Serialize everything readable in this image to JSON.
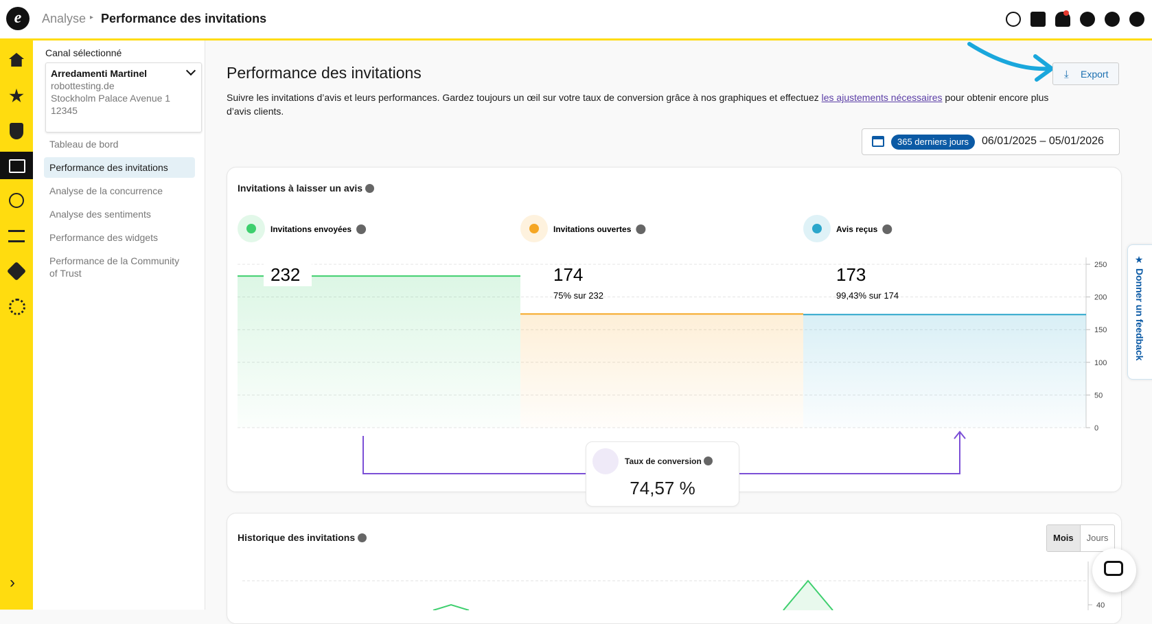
{
  "header": {
    "breadcrumb_parent": "Analyse",
    "breadcrumb_current": "Performance des invitations"
  },
  "sidebar": {
    "channel_label": "Canal sélectionné",
    "channel": {
      "name": "Arredamenti Martinel",
      "domain": "robottesting.de",
      "address": "Stockholm Palace Avenue 1",
      "zip": "12345"
    },
    "nav": [
      "Tableau de bord",
      "Performance des invitations",
      "Analyse de la concurrence",
      "Analyse des sentiments",
      "Performance des widgets",
      "Performance de la Community of Trust"
    ],
    "active": 1
  },
  "page": {
    "title": "Performance des invitations",
    "description_before": "Suivre les invitations d’avis et leurs performances. Gardez toujours un œil sur votre taux de conversion grâce à nos graphiques et effectuez ",
    "description_link": "les ajustements nécessaires",
    "description_after": " pour obtenir encore plus d’avis clients.",
    "export": "Export",
    "date_range_badge": "365 derniers jours",
    "date_range": "06/01/2025 – 05/01/2026"
  },
  "funnel": {
    "title": "Invitations à laisser un avis",
    "ylim": [
      0,
      250
    ],
    "yticks": [
      0,
      50,
      100,
      150,
      200,
      250
    ],
    "steps": [
      {
        "label": "Invitations envoyées",
        "value": 232,
        "color": "#3ecf6e"
      },
      {
        "label": "Invitations ouvertes",
        "value": 174,
        "sub": "75% sur 232",
        "color": "#f5a623"
      },
      {
        "label": "Avis reçus",
        "value": 173,
        "sub": "99,43% sur 174",
        "color": "#2ba6cb"
      }
    ],
    "conversion": {
      "label": "Taux de conversion",
      "value": "74,57 %"
    }
  },
  "history": {
    "title": "Historique des invitations",
    "toggle": [
      "Mois",
      "Jours"
    ],
    "yticks": [
      40
    ]
  },
  "feedback": "Donner un feedback"
}
